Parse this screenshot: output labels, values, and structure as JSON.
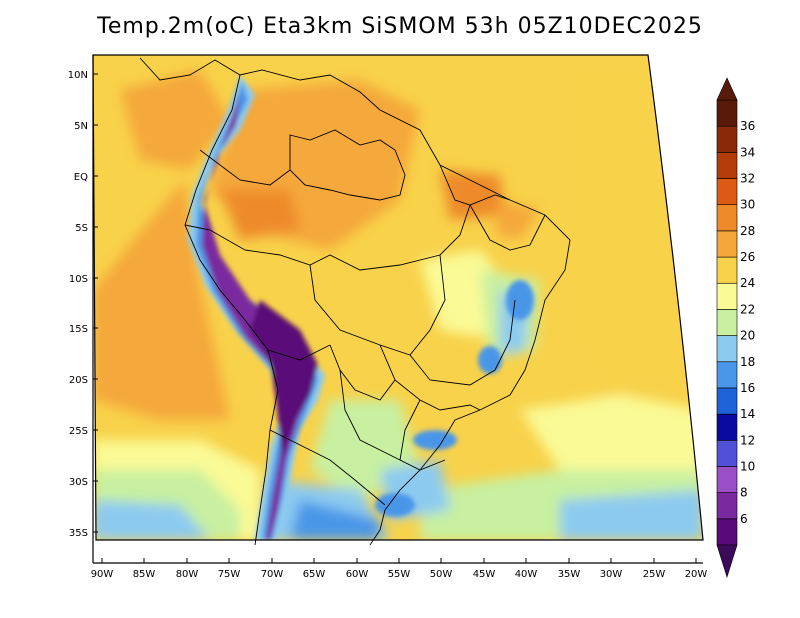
{
  "title": "Temp.2m(oC) Eta3km SiSMOM 53h 05Z10DEC2025",
  "lat_labels": [
    "10N",
    "5N",
    "EQ",
    "5S",
    "10S",
    "15S",
    "20S",
    "25S",
    "30S",
    "35S"
  ],
  "lon_labels": [
    "90W",
    "85W",
    "80W",
    "75W",
    "70W",
    "65W",
    "60W",
    "55W",
    "50W",
    "45W",
    "40W",
    "35W",
    "30W",
    "25W",
    "20W"
  ],
  "colorbar": {
    "labels": [
      "6",
      "8",
      "10",
      "12",
      "14",
      "16",
      "18",
      "20",
      "22",
      "24",
      "26",
      "28",
      "30",
      "32",
      "34",
      "36"
    ],
    "colors": [
      "#5a0a78",
      "#7a2a9e",
      "#9b4fc6",
      "#5050d8",
      "#0a0aa0",
      "#1e64d8",
      "#4a96e8",
      "#8ccaf0",
      "#c8f0a0",
      "#fafa96",
      "#f8d24a",
      "#f5a83a",
      "#ee8a2a",
      "#dc5a14",
      "#b43c0a",
      "#8c280a",
      "#5a1a0a"
    ],
    "under_color": "#3c0a5a",
    "over_color": "#5a1a0a"
  },
  "chart_data": {
    "type": "heatmap",
    "title": "Temp.2m(oC) Eta3km SiSMOM 53h 05Z10DEC2025",
    "variable": "Temp.2m",
    "units": "oC",
    "model": "Eta3km SiSMOM",
    "forecast_hour": "53h",
    "valid_time": "05Z10DEC2025",
    "lon_range": [
      -90,
      -20
    ],
    "lat_range": [
      -37,
      11
    ],
    "color_levels": [
      6,
      8,
      10,
      12,
      14,
      16,
      18,
      20,
      22,
      24,
      26,
      28,
      30,
      32,
      34,
      36
    ]
  }
}
